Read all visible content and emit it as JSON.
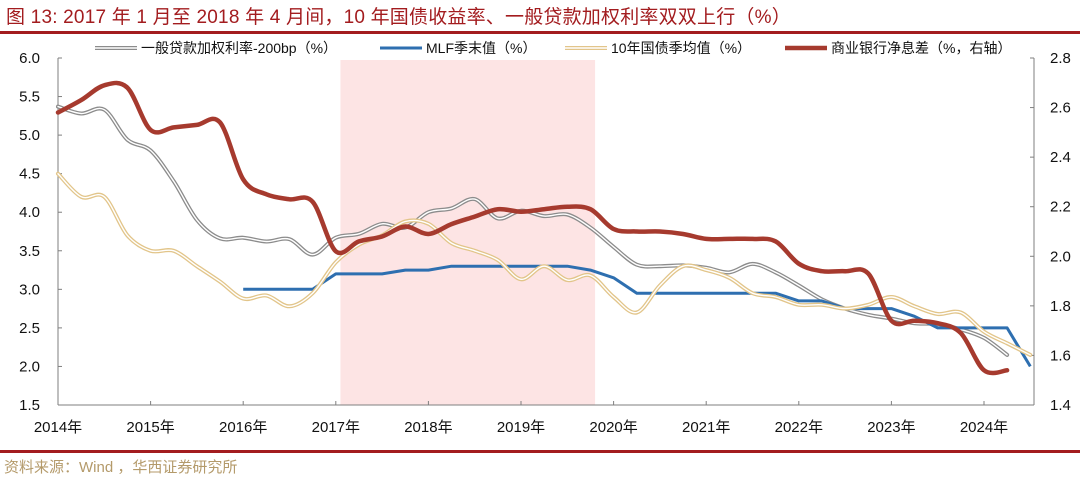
{
  "header": {
    "title": "图 13:  2017 年 1 月至 2018 年 4 月间，10 年国债收益率、一般贷款加权利率双双上行（%）"
  },
  "footer": {
    "source": "资料来源：Wind ，华西证券研究所"
  },
  "colors": {
    "title_red": "#a31c1f",
    "loan_rate_gray": "#8c8c8c",
    "mlf_blue": "#2e6fb0",
    "cgb_gold": "#e2c58a",
    "nim_red": "#a63a2e",
    "shade_pink": "#fde4e4",
    "source_gold": "#b49a6a"
  },
  "chart_data": {
    "type": "line",
    "title": "2017年1月至2018年4月间，10年国债收益率、一般贷款加权利率双双上行（%）",
    "xlabel": "",
    "ylabel_left": "%",
    "ylabel_right": "%（右轴）",
    "x_ticks": [
      "2014年",
      "2015年",
      "2016年",
      "2017年",
      "2018年",
      "2019年",
      "2020年",
      "2021年",
      "2022年",
      "2023年",
      "2024年"
    ],
    "ylim_left": [
      1.5,
      6.0
    ],
    "yticks_left": [
      "1.5",
      "2.0",
      "2.5",
      "3.0",
      "3.5",
      "4.0",
      "4.5",
      "5.0",
      "5.5",
      "6.0"
    ],
    "ylim_right": [
      1.4,
      2.8
    ],
    "yticks_right": [
      "1.4",
      "1.6",
      "1.8",
      "2.0",
      "2.2",
      "2.4",
      "2.6",
      "2.8"
    ],
    "grid": false,
    "legend_position": "top",
    "shaded_region": {
      "x_start": 2017.05,
      "x_end": 2019.8,
      "color": "#fde4e4"
    },
    "series": [
      {
        "name": "一般贷款加权利率-200bp（%）",
        "axis": "left",
        "style": "double-line",
        "color": "#8c8c8c",
        "x": [
          2014.0,
          2014.25,
          2014.5,
          2014.75,
          2015.0,
          2015.25,
          2015.5,
          2015.75,
          2016.0,
          2016.25,
          2016.5,
          2016.75,
          2017.0,
          2017.25,
          2017.5,
          2017.75,
          2018.0,
          2018.25,
          2018.5,
          2018.75,
          2019.0,
          2019.25,
          2019.5,
          2019.75,
          2020.0,
          2020.25,
          2020.5,
          2020.75,
          2021.0,
          2021.25,
          2021.5,
          2021.75,
          2022.0,
          2022.25,
          2022.5,
          2022.75,
          2023.0,
          2023.25,
          2023.5,
          2023.75,
          2024.0,
          2024.25
        ],
        "values": [
          5.37,
          5.28,
          5.33,
          4.94,
          4.8,
          4.4,
          3.9,
          3.66,
          3.67,
          3.62,
          3.65,
          3.45,
          3.67,
          3.72,
          3.85,
          3.8,
          4.0,
          4.05,
          4.17,
          3.92,
          4.02,
          3.95,
          3.97,
          3.8,
          3.55,
          3.32,
          3.3,
          3.31,
          3.28,
          3.22,
          3.33,
          3.22,
          3.05,
          2.87,
          2.75,
          2.67,
          2.62,
          2.56,
          2.55,
          2.48,
          2.37,
          2.15
        ]
      },
      {
        "name": "MLF季末值（%）",
        "axis": "left",
        "style": "solid",
        "color": "#2e6fb0",
        "x": [
          2016.0,
          2016.25,
          2016.5,
          2016.75,
          2017.0,
          2017.25,
          2017.5,
          2017.75,
          2018.0,
          2018.25,
          2018.5,
          2018.75,
          2019.0,
          2019.25,
          2019.5,
          2019.75,
          2020.0,
          2020.25,
          2020.5,
          2020.75,
          2021.0,
          2021.25,
          2021.5,
          2021.75,
          2022.0,
          2022.25,
          2022.5,
          2022.75,
          2023.0,
          2023.25,
          2023.5,
          2023.75,
          2024.0,
          2024.25,
          2024.5
        ],
        "values": [
          3.0,
          3.0,
          3.0,
          3.0,
          3.2,
          3.2,
          3.2,
          3.25,
          3.25,
          3.3,
          3.3,
          3.3,
          3.3,
          3.3,
          3.3,
          3.25,
          3.15,
          2.95,
          2.95,
          2.95,
          2.95,
          2.95,
          2.95,
          2.95,
          2.85,
          2.85,
          2.75,
          2.75,
          2.75,
          2.65,
          2.5,
          2.5,
          2.5,
          2.5,
          2.0
        ]
      },
      {
        "name": "10年国债季均值（%）",
        "axis": "left",
        "style": "double-line",
        "color": "#e2c58a",
        "x": [
          2014.0,
          2014.25,
          2014.5,
          2014.75,
          2015.0,
          2015.25,
          2015.5,
          2015.75,
          2016.0,
          2016.25,
          2016.5,
          2016.75,
          2017.0,
          2017.25,
          2017.5,
          2017.75,
          2018.0,
          2018.25,
          2018.5,
          2018.75,
          2019.0,
          2019.25,
          2019.5,
          2019.75,
          2020.0,
          2020.25,
          2020.5,
          2020.75,
          2021.0,
          2021.25,
          2021.5,
          2021.75,
          2022.0,
          2022.25,
          2022.5,
          2022.75,
          2023.0,
          2023.25,
          2023.5,
          2023.75,
          2024.0,
          2024.25,
          2024.5
        ],
        "values": [
          4.5,
          4.2,
          4.2,
          3.7,
          3.5,
          3.5,
          3.3,
          3.1,
          2.88,
          2.92,
          2.78,
          2.95,
          3.35,
          3.58,
          3.7,
          3.88,
          3.85,
          3.6,
          3.5,
          3.38,
          3.13,
          3.3,
          3.12,
          3.18,
          2.9,
          2.7,
          3.05,
          3.3,
          3.25,
          3.15,
          2.95,
          2.9,
          2.8,
          2.8,
          2.75,
          2.8,
          2.9,
          2.78,
          2.68,
          2.7,
          2.45,
          2.3,
          2.15
        ]
      },
      {
        "name": "商业银行净息差（%，右轴）",
        "axis": "right",
        "style": "solid-thick",
        "color": "#a63a2e",
        "x": [
          2014.0,
          2014.25,
          2014.5,
          2014.75,
          2015.0,
          2015.25,
          2015.5,
          2015.75,
          2016.0,
          2016.25,
          2016.5,
          2016.75,
          2017.0,
          2017.25,
          2017.5,
          2017.75,
          2018.0,
          2018.25,
          2018.5,
          2018.75,
          2019.0,
          2019.25,
          2019.5,
          2019.75,
          2020.0,
          2020.25,
          2020.5,
          2020.75,
          2021.0,
          2021.25,
          2021.5,
          2021.75,
          2022.0,
          2022.25,
          2022.5,
          2022.75,
          2023.0,
          2023.25,
          2023.5,
          2023.75,
          2024.0,
          2024.25
        ],
        "values": [
          2.58,
          2.63,
          2.69,
          2.68,
          2.51,
          2.52,
          2.53,
          2.54,
          2.31,
          2.25,
          2.23,
          2.22,
          2.02,
          2.06,
          2.08,
          2.12,
          2.09,
          2.13,
          2.16,
          2.19,
          2.18,
          2.19,
          2.2,
          2.19,
          2.11,
          2.1,
          2.1,
          2.09,
          2.07,
          2.07,
          2.07,
          2.06,
          1.97,
          1.94,
          1.94,
          1.93,
          1.74,
          1.74,
          1.73,
          1.69,
          1.54,
          1.54
        ]
      }
    ]
  },
  "legend": {
    "items": [
      {
        "label": "一般贷款加权利率-200bp（%）"
      },
      {
        "label": "MLF季末值（%）"
      },
      {
        "label": "10年国债季均值（%）"
      },
      {
        "label": "商业银行净息差（%，右轴）"
      }
    ]
  }
}
